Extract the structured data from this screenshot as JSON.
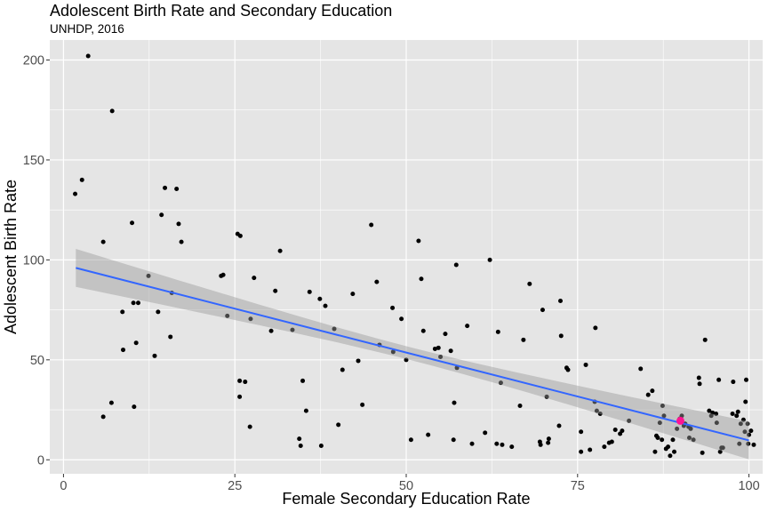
{
  "chart_data": {
    "type": "scatter",
    "title": "Adolescent Birth Rate and Secondary Education",
    "subtitle": "UNHDP, 2016",
    "xlabel": "Female Secondary Education Rate",
    "ylabel": "Adolescent Birth Rate",
    "xlim": [
      -2,
      102
    ],
    "ylim": [
      -7,
      210
    ],
    "xticks": [
      0,
      25,
      50,
      75,
      100
    ],
    "yticks": [
      0,
      50,
      100,
      150,
      200
    ],
    "grid": true,
    "colors": {
      "panel": "#e5e5e5",
      "grid": "#ffffff",
      "points": "#000000",
      "fit_line": "#3366ff",
      "ribbon": "#999999",
      "highlight": "#ff1493"
    },
    "fit": {
      "method": "linear",
      "x_range": [
        1.8,
        100
      ],
      "y_start": 96,
      "y_end": 9.7,
      "ci_half_width_ends": 9.5,
      "ci_half_width_mid": 3.2
    },
    "highlight_point": {
      "x": 90,
      "y": 19.5
    },
    "points": [
      [
        1.7,
        133
      ],
      [
        2.7,
        140
      ],
      [
        3.6,
        202
      ],
      [
        5.8,
        21.5
      ],
      [
        5.8,
        109
      ],
      [
        7.1,
        174.5
      ],
      [
        7,
        28.5
      ],
      [
        8.6,
        74
      ],
      [
        8.7,
        55
      ],
      [
        10,
        118.5
      ],
      [
        10.2,
        78.5
      ],
      [
        10.3,
        26.5
      ],
      [
        10.6,
        58.5
      ],
      [
        10.9,
        78.5
      ],
      [
        12.4,
        92
      ],
      [
        13.3,
        52
      ],
      [
        13.8,
        74
      ],
      [
        14.3,
        122.5
      ],
      [
        14.8,
        136
      ],
      [
        15.6,
        61.5
      ],
      [
        15.8,
        83.5
      ],
      [
        16.5,
        135.5
      ],
      [
        16.8,
        118
      ],
      [
        17.2,
        109
      ],
      [
        23,
        92
      ],
      [
        23.3,
        92.5
      ],
      [
        23.9,
        72
      ],
      [
        25.4,
        113
      ],
      [
        25.7,
        31.5
      ],
      [
        25.8,
        112
      ],
      [
        25.7,
        39.5
      ],
      [
        26.5,
        39
      ],
      [
        27.3,
        70.5
      ],
      [
        27.2,
        16.5
      ],
      [
        27.8,
        91
      ],
      [
        30.3,
        64.5
      ],
      [
        30.9,
        84.5
      ],
      [
        31.6,
        104.5
      ],
      [
        33.4,
        65
      ],
      [
        34.4,
        10.5
      ],
      [
        34.6,
        7
      ],
      [
        34.9,
        39.5
      ],
      [
        35.4,
        24.5
      ],
      [
        35.9,
        84
      ],
      [
        37.4,
        80.5
      ],
      [
        37.6,
        7
      ],
      [
        38.2,
        77
      ],
      [
        39.5,
        65.5
      ],
      [
        40.1,
        17.5
      ],
      [
        40.7,
        45
      ],
      [
        42.2,
        83
      ],
      [
        43,
        49.5
      ],
      [
        43.6,
        27.5
      ],
      [
        44.9,
        117.5
      ],
      [
        45.7,
        89
      ],
      [
        46.1,
        57.5
      ],
      [
        48,
        76
      ],
      [
        48.1,
        54
      ],
      [
        49.3,
        70.5
      ],
      [
        50,
        50
      ],
      [
        50.7,
        10
      ],
      [
        51.8,
        109.5
      ],
      [
        52.2,
        90.5
      ],
      [
        52.5,
        64.5
      ],
      [
        53.2,
        12.5
      ],
      [
        54.2,
        55.5
      ],
      [
        54.7,
        56
      ],
      [
        55,
        51.5
      ],
      [
        55.7,
        63
      ],
      [
        56.5,
        54.5
      ],
      [
        56.9,
        10
      ],
      [
        57,
        28.5
      ],
      [
        57.3,
        97.5
      ],
      [
        57.4,
        46
      ],
      [
        58.9,
        67
      ],
      [
        59.6,
        8
      ],
      [
        61.5,
        13.5
      ],
      [
        62.2,
        100
      ],
      [
        63.2,
        8
      ],
      [
        63.4,
        64
      ],
      [
        63.8,
        38.5
      ],
      [
        64,
        7.5
      ],
      [
        65.4,
        6.5
      ],
      [
        66.6,
        27
      ],
      [
        67.1,
        60
      ],
      [
        68,
        88
      ],
      [
        69.5,
        9
      ],
      [
        69.6,
        7.5
      ],
      [
        69.9,
        75
      ],
      [
        70.5,
        31.5
      ],
      [
        70.7,
        8.5
      ],
      [
        70.8,
        10.5
      ],
      [
        72.3,
        17
      ],
      [
        72.5,
        79.5
      ],
      [
        72.6,
        62
      ],
      [
        73.4,
        46
      ],
      [
        73.6,
        45
      ],
      [
        75.5,
        14
      ],
      [
        75.5,
        4
      ],
      [
        76.2,
        47.5
      ],
      [
        76.8,
        5
      ],
      [
        77.5,
        29
      ],
      [
        77.6,
        66
      ],
      [
        77.8,
        24.5
      ],
      [
        78.3,
        23
      ],
      [
        78.9,
        6.5
      ],
      [
        79.6,
        8.5
      ],
      [
        80,
        9
      ],
      [
        80.5,
        15
      ],
      [
        81.2,
        13
      ],
      [
        81.5,
        14.5
      ],
      [
        82.5,
        19.5
      ],
      [
        84.2,
        45.5
      ],
      [
        85.3,
        32.5
      ],
      [
        85.9,
        34.5
      ],
      [
        86.3,
        4
      ],
      [
        86.5,
        12
      ],
      [
        86.7,
        11
      ],
      [
        87,
        18.5
      ],
      [
        87.3,
        10
      ],
      [
        87.4,
        27
      ],
      [
        87.6,
        22
      ],
      [
        87.9,
        5.5
      ],
      [
        88.2,
        6.5
      ],
      [
        88.5,
        2
      ],
      [
        88.9,
        10
      ],
      [
        89.1,
        4
      ],
      [
        89.5,
        15.5
      ],
      [
        89.9,
        20.5
      ],
      [
        90.2,
        22
      ],
      [
        90.5,
        17
      ],
      [
        90.7,
        18
      ],
      [
        91.2,
        16.5
      ],
      [
        91.3,
        11
      ],
      [
        91.5,
        15.5
      ],
      [
        91.9,
        10
      ],
      [
        92.7,
        41
      ],
      [
        92.8,
        38
      ],
      [
        93.2,
        3.5
      ],
      [
        93.6,
        60
      ],
      [
        94.2,
        24.5
      ],
      [
        94.5,
        22
      ],
      [
        94.7,
        23.5
      ],
      [
        95.2,
        23
      ],
      [
        95.3,
        18.5
      ],
      [
        95.6,
        40
      ],
      [
        95.8,
        4
      ],
      [
        96,
        6
      ],
      [
        96.2,
        6
      ],
      [
        97.6,
        23
      ],
      [
        97.7,
        39
      ],
      [
        98.2,
        22
      ],
      [
        98.4,
        24
      ],
      [
        98.6,
        8
      ],
      [
        98.8,
        18
      ],
      [
        99.2,
        20
      ],
      [
        99.4,
        14
      ],
      [
        99.5,
        29
      ],
      [
        99.6,
        40
      ],
      [
        99.8,
        18
      ],
      [
        99.9,
        8
      ],
      [
        100,
        12.5
      ],
      [
        100.3,
        14.5
      ],
      [
        100.7,
        7.5
      ]
    ]
  }
}
